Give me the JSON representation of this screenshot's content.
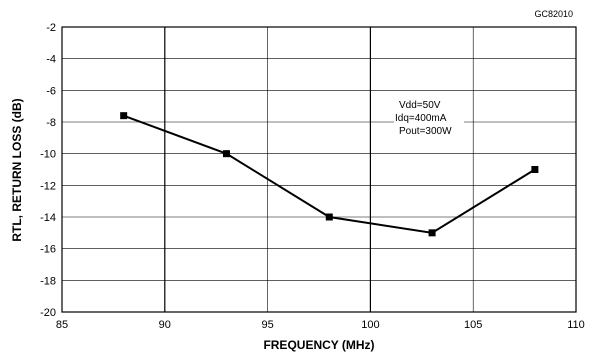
{
  "chart_data": {
    "type": "line",
    "figure_code": "GC82010",
    "xlabel": "FREQUENCY (MHz)",
    "ylabel": "RTL, RETURN LOSS (dB)",
    "xlim": [
      85,
      110
    ],
    "ylim": [
      -20,
      -2
    ],
    "x_ticks": [
      "85",
      "90",
      "95",
      "100",
      "105",
      "110"
    ],
    "y_ticks": [
      "-2",
      "-4",
      "-6",
      "-8",
      "-10",
      "-12",
      "-14",
      "-16",
      "-18",
      "-20"
    ],
    "grid": true,
    "conditions": [
      "Vdd=50V",
      "Idq=400mA",
      "Pout=300W"
    ],
    "series": [
      {
        "x": [
          88,
          93,
          98,
          103,
          108
        ],
        "values": [
          -7.6,
          -10,
          -14,
          -15,
          -11
        ],
        "marker": "square",
        "color": "#000000"
      }
    ]
  }
}
